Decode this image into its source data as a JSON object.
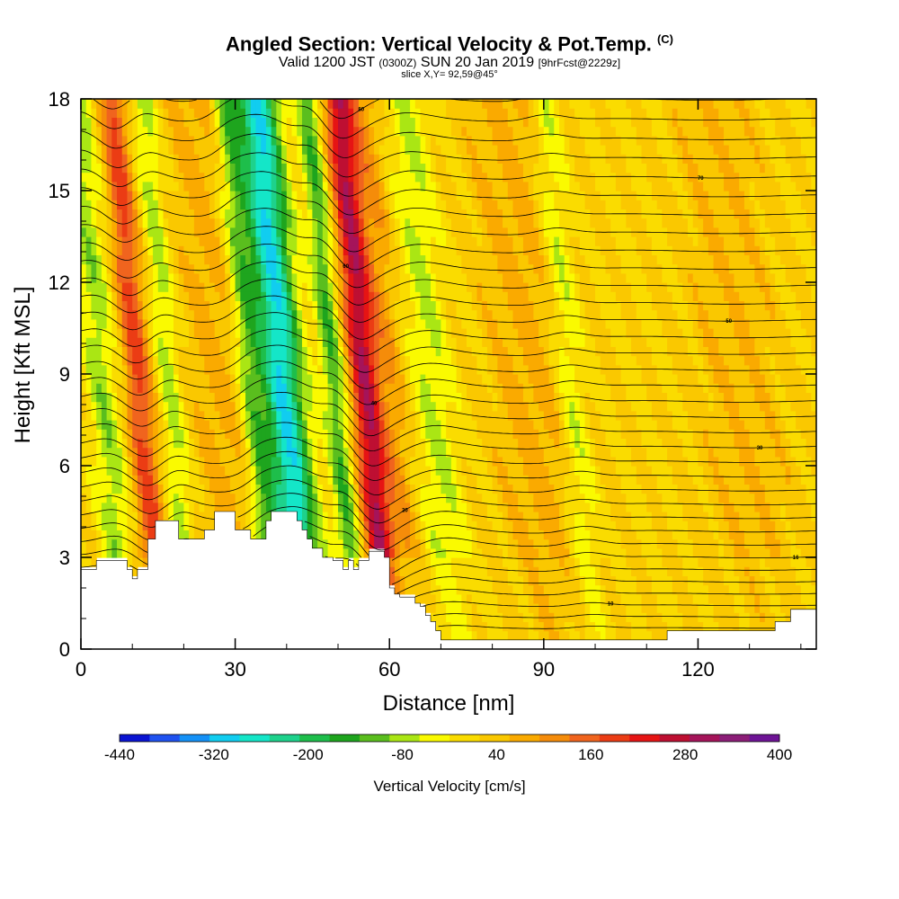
{
  "header": {
    "title": "Angled Section: Vertical Velocity & Pot.Temp.",
    "copyright": "(C)",
    "valid_prefix": "Valid 1200 JST",
    "valid_z": "(0300Z)",
    "valid_date": "SUN 20 Jan 2019",
    "forecast": "[9hrFcst@2229z]",
    "slice": "slice X,Y= 92,59@45°"
  },
  "colors": {
    "palette": [
      "#0a14d2",
      "#1f52f0",
      "#1491f7",
      "#11cdf0",
      "#14e6c8",
      "#1ed28c",
      "#1ebe4b",
      "#1ea51e",
      "#5abe1e",
      "#aae614",
      "#fafa00",
      "#fadc00",
      "#fac800",
      "#faaa00",
      "#f58c0a",
      "#f0641e",
      "#eb3c14",
      "#e61414",
      "#be0f32",
      "#a5145a",
      "#8c1e78",
      "#6e1496"
    ],
    "terrain": "#ffffff"
  },
  "chart_data": {
    "type": "heatmap",
    "title": "Angled Section: Vertical Velocity & Pot.Temp.",
    "xlabel": "Distance [nm]",
    "ylabel": "Height [Kft MSL]",
    "xlim": [
      0,
      143
    ],
    "ylim": [
      0,
      18
    ],
    "xticks": [
      0,
      30,
      60,
      90,
      120
    ],
    "yticks": [
      0,
      3,
      6,
      9,
      12,
      15,
      18
    ],
    "grid": false,
    "colorbar": {
      "label": "Vertical Velocity [cm/s]",
      "min": -440,
      "max": 400,
      "step": 40,
      "tick_labels": [
        "-440",
        "-320",
        "-200",
        "-80",
        "40",
        "160",
        "280",
        "400"
      ]
    },
    "vertical_velocity_features": [
      {
        "x": 4,
        "w": 3,
        "v": -100
      },
      {
        "x": 11,
        "w": 2.6,
        "v": 180
      },
      {
        "x": 17,
        "w": 2.2,
        "v": -90
      },
      {
        "x": 26,
        "w": 5,
        "v": 60
      },
      {
        "x": 33,
        "w": 2.4,
        "v": -120
      },
      {
        "x": 39,
        "w": 4,
        "v": -320
      },
      {
        "x": 49,
        "w": 2.2,
        "v": -150
      },
      {
        "x": 55,
        "w": 2.8,
        "v": 280
      },
      {
        "x": 60,
        "w": 3,
        "v": 80
      },
      {
        "x": 68,
        "w": 4,
        "v": -80
      },
      {
        "x": 88,
        "w": 9,
        "v": 60
      },
      {
        "x": 95,
        "w": 3,
        "v": -90
      },
      {
        "x": 128,
        "w": 10,
        "v": 40
      }
    ],
    "terrain_height": {
      "x": [
        0,
        2,
        3,
        8,
        9,
        10,
        11,
        12,
        13,
        14,
        14.5,
        18,
        19,
        20,
        24,
        26,
        28,
        30,
        31,
        32,
        33,
        34,
        35,
        36,
        37,
        38,
        39,
        40,
        41,
        42,
        43,
        44,
        45,
        46,
        47,
        48,
        49,
        50,
        51,
        52,
        53,
        54,
        55,
        56,
        57,
        58,
        59,
        60,
        61,
        62,
        63,
        64,
        65,
        66,
        67,
        68,
        69,
        70,
        75,
        80,
        90,
        100,
        108,
        113,
        114,
        115,
        116,
        125,
        130,
        135,
        138,
        140,
        143
      ],
      "h": [
        2.6,
        2.6,
        2.9,
        2.9,
        2.6,
        2.3,
        2.6,
        2.6,
        3.6,
        3.6,
        4.2,
        4.2,
        3.6,
        3.6,
        3.9,
        4.5,
        4.5,
        3.9,
        3.9,
        3.9,
        3.6,
        3.6,
        3.6,
        4.2,
        4.5,
        4.5,
        4.5,
        4.5,
        4.5,
        4.2,
        3.9,
        3.6,
        3.3,
        3.3,
        3.0,
        3.0,
        2.9,
        2.9,
        2.6,
        2.9,
        2.6,
        2.9,
        2.9,
        3.2,
        3.2,
        3.2,
        3.0,
        2.0,
        1.8,
        1.7,
        1.7,
        1.7,
        1.5,
        1.4,
        1.1,
        0.9,
        0.6,
        0.3,
        0.3,
        0.3,
        0.3,
        0.3,
        0.3,
        0.3,
        0.6,
        0.6,
        0.6,
        0.6,
        0.6,
        0.9,
        1.3,
        1.3,
        1.3
      ]
    },
    "isentrope_label_samples": [
      "10",
      "16",
      "20",
      "30",
      "40",
      "50",
      "60",
      "70",
      "80",
      "90",
      "100"
    ]
  }
}
